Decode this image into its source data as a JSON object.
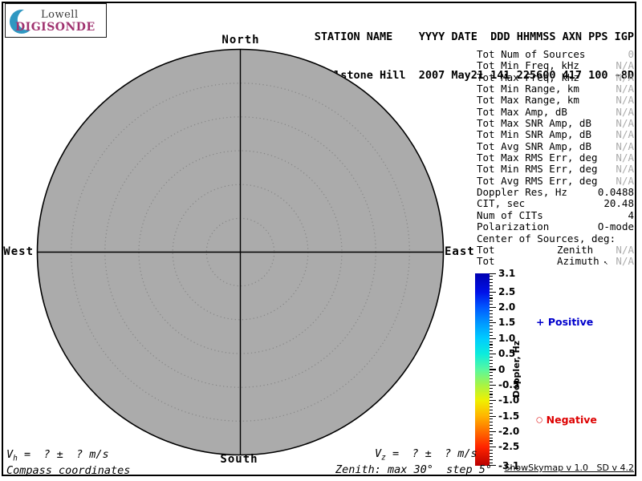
{
  "logo": {
    "top": "Lowell",
    "bottom": "DIGISONDE",
    "accent_color": "#A03370",
    "crescent_color": "#2F97C1"
  },
  "header": {
    "line1": "STATION NAME    YYYY DATE  DDD HHMMSS AXN PPS IGP",
    "line2": "Millstone Hill  2007 May21 141 225600 417 100 -8D"
  },
  "skymap": {
    "fill": "#ababab",
    "ring_color": "#868686",
    "rings_deg": [
      5,
      10,
      15,
      20,
      25
    ],
    "max_deg": 30,
    "compass": {
      "north": "North",
      "south": "South",
      "east": "East",
      "west": "West"
    }
  },
  "stats": {
    "rows": [
      {
        "label": "Tot Num of Sources",
        "value": "0",
        "muted": true
      },
      {
        "label": "Tot Min Freq, kHz",
        "value": "N/A",
        "muted": true
      },
      {
        "label": "Tot Max Freq, kHz",
        "value": "N/A",
        "muted": true
      },
      {
        "label": "Tot Min Range, km",
        "value": "N/A",
        "muted": true
      },
      {
        "label": "Tot Max Range, km",
        "value": "N/A",
        "muted": true
      },
      {
        "label": "Tot Max Amp, dB",
        "value": "N/A",
        "muted": true
      },
      {
        "label": "Tot Max SNR Amp, dB",
        "value": "N/A",
        "muted": true
      },
      {
        "label": "Tot Min SNR Amp, dB",
        "value": "N/A",
        "muted": true
      },
      {
        "label": "Tot Avg SNR Amp, dB",
        "value": "N/A",
        "muted": true
      },
      {
        "label": "Tot Max RMS Err, deg",
        "value": "N/A",
        "muted": true
      },
      {
        "label": "Tot Min RMS Err, deg",
        "value": "N/A",
        "muted": true
      },
      {
        "label": "Tot Avg RMS Err, deg",
        "value": "N/A",
        "muted": true
      },
      {
        "label": "Doppler Res, Hz",
        "value": "0.0488",
        "muted": false
      },
      {
        "label": "CIT, sec",
        "value": "20.48",
        "muted": false
      },
      {
        "label": "Num of CITs",
        "value": "4",
        "muted": false
      },
      {
        "label": "Polarization",
        "value": "O-mode",
        "muted": false
      },
      {
        "label": "Center of Sources, deg:",
        "value": "",
        "muted": false
      },
      {
        "label": "Tot",
        "mid": "Zenith",
        "value": "N/A",
        "muted": true
      },
      {
        "label": "Tot",
        "mid": "Azimuth",
        "mid_icon": "↖",
        "value": "N/A",
        "muted": true
      }
    ]
  },
  "colorbar": {
    "title": "Doppler, Hz",
    "min": -3.1,
    "max": 3.1,
    "minor_step": 0.1,
    "tick_labels": [
      {
        "v": 3.1,
        "t": "3.1"
      },
      {
        "v": 2.5,
        "t": "2.5"
      },
      {
        "v": 2.0,
        "t": "2.0"
      },
      {
        "v": 1.5,
        "t": "1.5"
      },
      {
        "v": 1.0,
        "t": "1.0"
      },
      {
        "v": 0.5,
        "t": "0.5"
      },
      {
        "v": 0.0,
        "t": "0"
      },
      {
        "v": -0.5,
        "t": "-0.5"
      },
      {
        "v": -1.0,
        "t": "-1.0"
      },
      {
        "v": -1.5,
        "t": "-1.5"
      },
      {
        "v": -2.0,
        "t": "-2.0"
      },
      {
        "v": -2.5,
        "t": "-2.5"
      },
      {
        "v": -3.1,
        "t": "-3.1"
      }
    ],
    "stops": [
      {
        "p": "0%",
        "c": "#0000B0"
      },
      {
        "p": "9.7%",
        "c": "#0010E8"
      },
      {
        "p": "17.7%",
        "c": "#0058FF"
      },
      {
        "p": "25.8%",
        "c": "#0098FF"
      },
      {
        "p": "33.9%",
        "c": "#00CCFF"
      },
      {
        "p": "41.9%",
        "c": "#0CECDC"
      },
      {
        "p": "50%",
        "c": "#58F8A0"
      },
      {
        "p": "58.1%",
        "c": "#A8F444"
      },
      {
        "p": "66.1%",
        "c": "#F0F000"
      },
      {
        "p": "74.2%",
        "c": "#FFB400"
      },
      {
        "p": "82.3%",
        "c": "#FF6C00"
      },
      {
        "p": "90.3%",
        "c": "#FF2400"
      },
      {
        "p": "100%",
        "c": "#B80000"
      }
    ]
  },
  "legend": {
    "positive_symbol": "+",
    "positive_label": "Positive",
    "positive_color": "#0000CC",
    "negative_symbol": "○",
    "negative_label": "Negative",
    "negative_color": "#DD0000"
  },
  "footer": {
    "vh_var": "V",
    "vh_sub": "h",
    "vh_eq": " =  ? ±  ? m/s",
    "vz_var": "V",
    "vz_sub": "z",
    "vz_eq": " =  ? ±  ? m/s",
    "coords_note": "Compass coordinates",
    "zenith_note": "Zenith: max 30°  step 5°",
    "version": "ShowSkymap v 1.0   SD v 4.2"
  },
  "chart_data": {
    "type": "scatter",
    "title": "Digisonde skymap, Millstone Hill 2007 May21 141 225600",
    "projection": "polar",
    "points": [],
    "note": "Empty skymap: Tot Num of Sources = 0, no source points plotted",
    "polar_rings_deg": [
      5,
      10,
      15,
      20,
      25,
      30
    ],
    "zenith_max_deg": 30,
    "zenith_step_deg": 5,
    "color_scale": {
      "label": "Doppler, Hz",
      "min": -3.1,
      "max": 3.1,
      "positive": "blue",
      "negative": "red"
    }
  }
}
